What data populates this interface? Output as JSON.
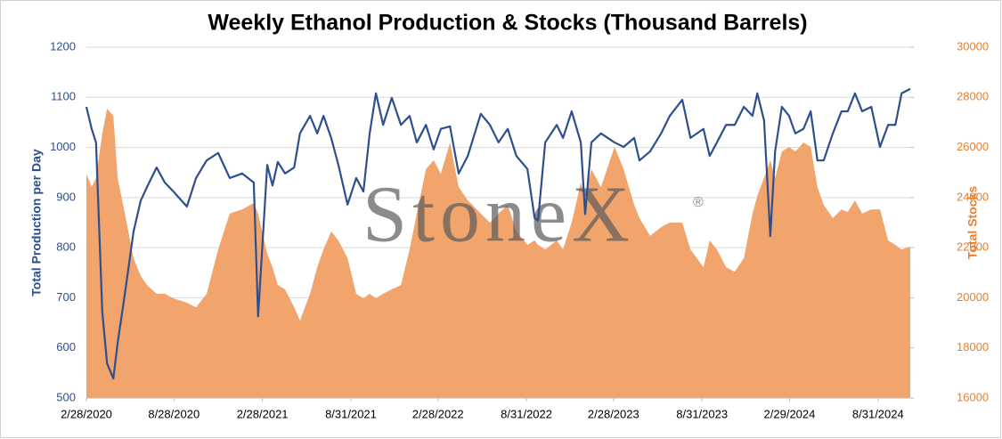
{
  "chart_data": {
    "type": "line",
    "title": "Weekly Ethanol Production & Stocks (Thousand Barrels)",
    "ylabel": "Total Production per Day",
    "y2label": "Total Stocks",
    "watermark": "StoneX",
    "watermark_mark": "®",
    "grid": true,
    "xlim": [
      "2020-02-28",
      "2024-11-06"
    ],
    "xticks": [
      {
        "value": "2020-02-28",
        "label": "2/28/2020"
      },
      {
        "value": "2020-08-28",
        "label": "8/28/2020"
      },
      {
        "value": "2021-02-28",
        "label": "2/28/2021"
      },
      {
        "value": "2021-08-31",
        "label": "8/31/2021"
      },
      {
        "value": "2022-02-28",
        "label": "2/28/2022"
      },
      {
        "value": "2022-08-31",
        "label": "8/31/2022"
      },
      {
        "value": "2023-02-28",
        "label": "2/28/2023"
      },
      {
        "value": "2023-08-31",
        "label": "8/31/2023"
      },
      {
        "value": "2024-02-29",
        "label": "2/29/2024"
      },
      {
        "value": "2024-08-31",
        "label": "8/31/2024"
      }
    ],
    "ylim": [
      500,
      1200
    ],
    "yticks": [
      500,
      600,
      700,
      800,
      900,
      1000,
      1100,
      1200
    ],
    "y2lim": [
      16000,
      30000
    ],
    "y2ticks": [
      16000,
      18000,
      20000,
      22000,
      24000,
      26000,
      28000,
      30000
    ],
    "x": [
      "2020-02-28",
      "2020-03-10",
      "2020-03-19",
      "2020-04-01",
      "2020-04-11",
      "2020-04-24",
      "2020-05-03",
      "2020-05-18",
      "2020-06-05",
      "2020-06-20",
      "2020-07-03",
      "2020-07-23",
      "2020-08-09",
      "2020-08-27",
      "2020-09-24",
      "2020-10-13",
      "2020-11-04",
      "2020-11-28",
      "2020-12-22",
      "2021-01-17",
      "2021-02-10",
      "2021-02-19",
      "2021-03-10",
      "2021-03-21",
      "2021-04-01",
      "2021-04-16",
      "2021-05-05",
      "2021-05-17",
      "2021-06-07",
      "2021-06-22",
      "2021-07-05",
      "2021-07-21",
      "2021-08-05",
      "2021-08-24",
      "2021-09-11",
      "2021-09-26",
      "2021-10-09",
      "2021-10-22",
      "2021-11-06",
      "2021-11-24",
      "2021-12-13",
      "2021-12-31",
      "2022-01-15",
      "2022-02-03",
      "2022-02-19",
      "2022-03-06",
      "2022-03-25",
      "2022-04-12",
      "2022-05-01",
      "2022-05-28",
      "2022-06-16",
      "2022-07-04",
      "2022-07-23",
      "2022-08-10",
      "2022-09-02",
      "2022-09-17",
      "2022-09-24",
      "2022-10-09",
      "2022-11-02",
      "2022-11-15",
      "2022-12-03",
      "2022-12-22",
      "2022-12-31",
      "2023-01-13",
      "2023-02-02",
      "2023-03-02",
      "2023-03-21",
      "2023-04-12",
      "2023-04-23",
      "2023-05-15",
      "2023-06-07",
      "2023-06-25",
      "2023-07-21",
      "2023-08-07",
      "2023-09-03",
      "2023-09-16",
      "2023-10-01",
      "2023-10-20",
      "2023-11-07",
      "2023-11-26",
      "2023-12-14",
      "2023-12-24",
      "2024-01-07",
      "2024-01-20",
      "2024-01-30",
      "2024-02-13",
      "2024-02-28",
      "2024-03-12",
      "2024-03-29",
      "2024-04-13",
      "2024-04-27",
      "2024-05-10",
      "2024-05-29",
      "2024-06-16",
      "2024-06-29",
      "2024-07-14",
      "2024-07-29",
      "2024-08-17",
      "2024-09-04",
      "2024-09-21",
      "2024-10-06",
      "2024-10-19",
      "2024-11-06"
    ],
    "series": [
      {
        "name": "Total Stocks",
        "type": "area",
        "axis": "y2",
        "color": "#f2a46d",
        "values": [
          24950,
          24420,
          24780,
          26550,
          27550,
          27260,
          24780,
          23360,
          21580,
          20870,
          20510,
          20160,
          20160,
          19980,
          19800,
          19620,
          20160,
          21930,
          23360,
          23530,
          23780,
          23360,
          21760,
          21220,
          20510,
          20340,
          19620,
          19090,
          20160,
          21220,
          21930,
          22650,
          22290,
          21580,
          20160,
          19980,
          20160,
          19980,
          20160,
          20340,
          20510,
          21930,
          23360,
          25130,
          25490,
          24950,
          26200,
          24420,
          23890,
          23360,
          23000,
          23360,
          23710,
          22650,
          22110,
          22290,
          22110,
          21930,
          22290,
          21930,
          23000,
          24600,
          24070,
          25130,
          24420,
          26020,
          25130,
          23710,
          23180,
          22470,
          22820,
          23000,
          23000,
          21930,
          21220,
          22290,
          21930,
          21220,
          21040,
          21580,
          23360,
          24070,
          24780,
          25490,
          24780,
          25840,
          26020,
          25840,
          26200,
          26020,
          24420,
          23710,
          23180,
          23530,
          23420,
          23890,
          23360,
          23530,
          23530,
          22290,
          22110,
          21930,
          22040
        ]
      },
      {
        "name": "Total Production per Day",
        "type": "line",
        "color": "#2e4f8e",
        "values": [
          1081,
          1037,
          1010,
          672,
          569,
          539,
          610,
          708,
          832,
          894,
          921,
          960,
          930,
          912,
          882,
          939,
          974,
          989,
          939,
          948,
          930,
          663,
          965,
          924,
          971,
          948,
          960,
          1028,
          1063,
          1028,
          1063,
          1019,
          965,
          886,
          939,
          912,
          1028,
          1108,
          1045,
          1099,
          1045,
          1063,
          1010,
          1045,
          996,
          1037,
          1042,
          948,
          983,
          1067,
          1045,
          1010,
          1037,
          983,
          957,
          859,
          854,
          1010,
          1045,
          1019,
          1072,
          1010,
          867,
          1010,
          1028,
          1010,
          1001,
          1019,
          974,
          992,
          1028,
          1063,
          1095,
          1019,
          1037,
          983,
          1010,
          1045,
          1045,
          1081,
          1063,
          1108,
          1054,
          823,
          992,
          1081,
          1063,
          1028,
          1037,
          1072,
          974,
          974,
          1028,
          1072,
          1072,
          1108,
          1072,
          1081,
          1001,
          1045,
          1045,
          1108,
          1117
        ]
      }
    ]
  }
}
